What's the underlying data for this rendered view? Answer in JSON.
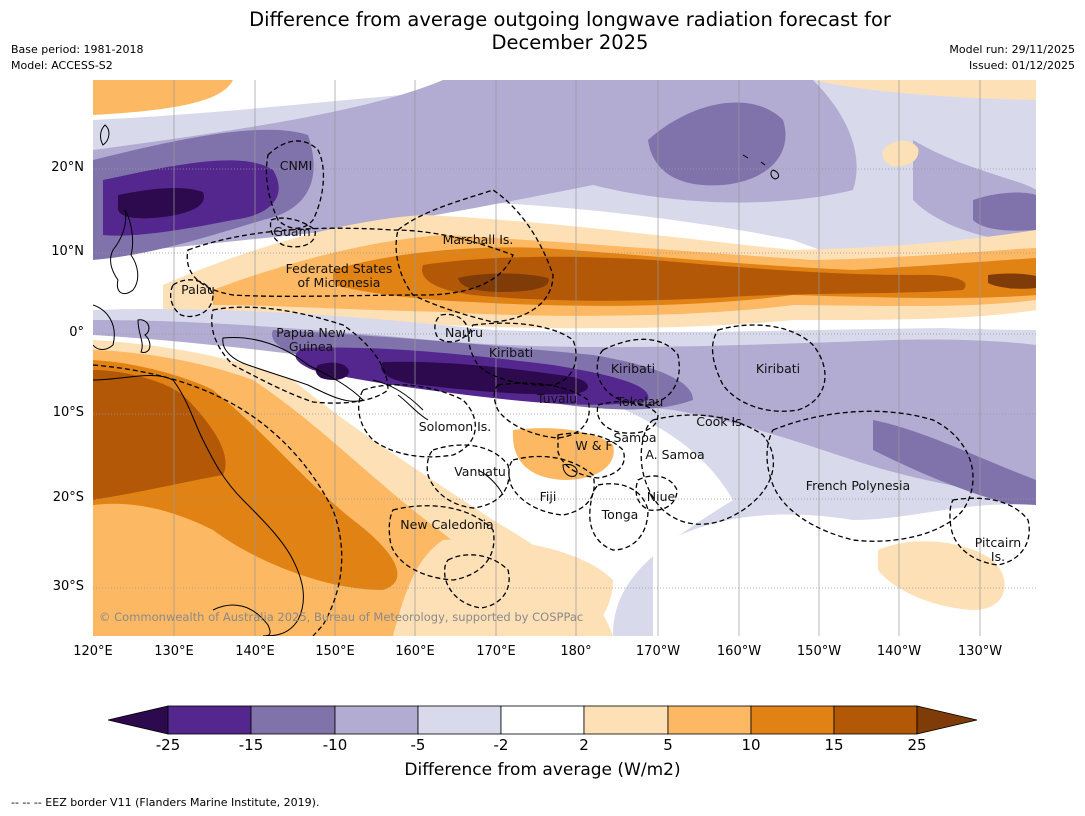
{
  "title_line1": "Difference from average outgoing longwave radiation forecast for",
  "title_line2": "December 2025",
  "meta_left": {
    "base_period": "Base period: 1981-2018",
    "model": "Model: ACCESS-S2"
  },
  "meta_right": {
    "model_run": "Model run: 29/11/2025",
    "issued": "Issued: 01/12/2025"
  },
  "lat_ticks": [
    "20°N",
    "10°N",
    "0°",
    "10°S",
    "20°S",
    "30°S"
  ],
  "lon_ticks": [
    "120°E",
    "130°E",
    "140°E",
    "150°E",
    "160°E",
    "170°E",
    "180°",
    "170°W",
    "160°W",
    "150°W",
    "140°W",
    "130°W"
  ],
  "places": {
    "cnmi": "CNMI",
    "guam": "Guam",
    "marshall": "Marshall Is.",
    "fsm1": "Federated States",
    "fsm2": "of Micronesia",
    "palau": "Palau",
    "png1": "Papua New",
    "png2": "Guinea",
    "nauru": "Nauru",
    "kiribati_w": "Kiribati",
    "kiribati_c": "Kiribati",
    "kiribati_e": "Kiribati",
    "tuvalu": "Tuvalu",
    "tokelau": "Tokelau",
    "solomon": "Solomon Is.",
    "cook": "Cook Is.",
    "wf": "W & F",
    "samoa": "Samoa",
    "asamoa": "A. Samoa",
    "vanuatu": "Vanuatu",
    "fiji": "Fiji",
    "niue": "Niue",
    "tonga": "Tonga",
    "frpoly": "French Polynesia",
    "newcal": "New Caledonia",
    "pitcairn1": "Pitcairn",
    "pitcairn2": "Is."
  },
  "copyright": "© Commonwealth of Australia 2025, Bureau of Meteorology, supported by COSPPac",
  "colorbar": {
    "ticks": [
      "-25",
      "-15",
      "-10",
      "-5",
      "-2",
      "2",
      "5",
      "10",
      "15",
      "25"
    ],
    "label": "Difference from average (W/m2)",
    "colors": {
      "lt_-25": "#2d0a4e",
      "m25_m15": "#54278f",
      "m15_m10": "#8073ac",
      "m10_m5": "#b2abd2",
      "m5_m2": "#d8daeb",
      "m2_2": "#ffffff",
      "p2_5": "#fee0b6",
      "p5_10": "#fdb863",
      "p10_15": "#e08214",
      "p15_25": "#b35806",
      "gt_25": "#7f3b08"
    }
  },
  "footnote": "--  --  -- EEZ border V11 (Flanders Marine Institute, 2019)."
}
